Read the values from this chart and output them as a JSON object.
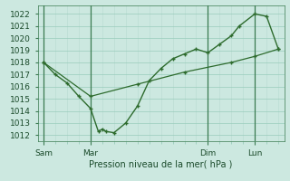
{
  "xlabel": "Pression niveau de la mer( hPa )",
  "bg_color": "#cce8e0",
  "grid_color_major": "#99ccbb",
  "grid_color_minor": "#bbddd4",
  "line_color": "#2d6b2d",
  "ylim": [
    1011.5,
    1022.7
  ],
  "yticks": [
    1012,
    1013,
    1014,
    1015,
    1016,
    1017,
    1018,
    1019,
    1020,
    1021,
    1022
  ],
  "xtick_labels": [
    "Sam",
    "Mar",
    "Dim",
    "Lun"
  ],
  "xtick_positions": [
    0,
    24,
    84,
    108
  ],
  "vline_positions": [
    0,
    24,
    84,
    108
  ],
  "total_x": 120,
  "line1_x": [
    0,
    6,
    12,
    18,
    24,
    28,
    30,
    32,
    36,
    42,
    48,
    54,
    60,
    66,
    72,
    78,
    84,
    90,
    96,
    100,
    108,
    114,
    120
  ],
  "line1_y": [
    1018,
    1017,
    1016.3,
    1015.2,
    1014.2,
    1012.3,
    1012.5,
    1012.3,
    1012.2,
    1013.0,
    1014.4,
    1016.5,
    1017.5,
    1018.3,
    1018.7,
    1019.1,
    1018.8,
    1019.5,
    1020.2,
    1021.0,
    1022.0,
    1021.8,
    1019.1
  ],
  "line2_x": [
    0,
    24,
    48,
    72,
    96,
    108,
    120
  ],
  "line2_y": [
    1018.0,
    1015.2,
    1016.2,
    1017.2,
    1018.0,
    1018.5,
    1019.1
  ],
  "xlim": [
    -3,
    123
  ],
  "markersize": 2.5
}
